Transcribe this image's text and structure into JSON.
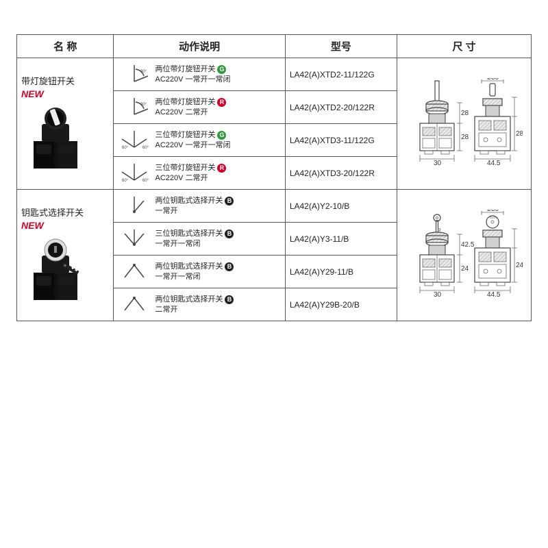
{
  "headers": {
    "name": "名 称",
    "action": "动作说明",
    "model": "型号",
    "dim": "尺 寸"
  },
  "groups": [
    {
      "name": "带灯旋钮开关",
      "new_label": "NEW",
      "product_kind": "rotary",
      "dim": {
        "base_w": "30",
        "h1": "28",
        "h2": "28",
        "side_w": "44.5",
        "diam": "ø30"
      },
      "rows": [
        {
          "sym": "two-90",
          "title": "两位带灯旋钮开关",
          "badge": "G",
          "badge_color": "#2e9c3a",
          "sub": "AC220V 一常开一常闭",
          "model": "LA42(A)XTD2-11/122G"
        },
        {
          "sym": "two-90",
          "title": "两位带灯旋钮开关",
          "badge": "R",
          "badge_color": "#d4002a",
          "sub": "AC220V 二常开",
          "model": "LA42(A)XTD2-20/122R"
        },
        {
          "sym": "three-60",
          "title": "三位带灯旋钮开关",
          "badge": "G",
          "badge_color": "#2e9c3a",
          "sub": "AC220V 一常开一常闭",
          "model": "LA42(A)XTD3-11/122G"
        },
        {
          "sym": "three-60",
          "title": "三位带灯旋钮开关",
          "badge": "R",
          "badge_color": "#d4002a",
          "sub": "AC220V 二常开",
          "model": "LA42(A)XTD3-20/122R"
        }
      ]
    },
    {
      "name": "钥匙式选择开关",
      "new_label": "NEW",
      "product_kind": "key",
      "dim": {
        "base_w": "30",
        "h1": "24",
        "h2": "42.5",
        "side_w": "44.5",
        "diam": "ø30"
      },
      "rows": [
        {
          "sym": "two-up",
          "title": "两位钥匙式选择开关",
          "badge": "B",
          "badge_color": "#222",
          "sub": "一常开",
          "model": "LA42(A)Y2-10/B"
        },
        {
          "sym": "three-up",
          "title": "三位钥匙式选择开关",
          "badge": "B",
          "badge_color": "#222",
          "sub": "一常开一常闭",
          "model": "LA42(A)Y3-11/B"
        },
        {
          "sym": "two-dn",
          "title": "两位钥匙式选择开关",
          "badge": "B",
          "badge_color": "#222",
          "sub": "一常开一常闭",
          "model": "LA42(A)Y29-11/B"
        },
        {
          "sym": "two-dn",
          "title": "两位钥匙式选择开关",
          "badge": "B",
          "badge_color": "#222",
          "sub": "二常开",
          "model": "LA42(A)Y29B-20/B"
        }
      ]
    }
  ],
  "colors": {
    "border": "#555",
    "text": "#222",
    "new": "#d4002a",
    "bg": "#ffffff"
  },
  "fonts": {
    "header_size": 15,
    "body_size": 12,
    "small_size": 11
  }
}
